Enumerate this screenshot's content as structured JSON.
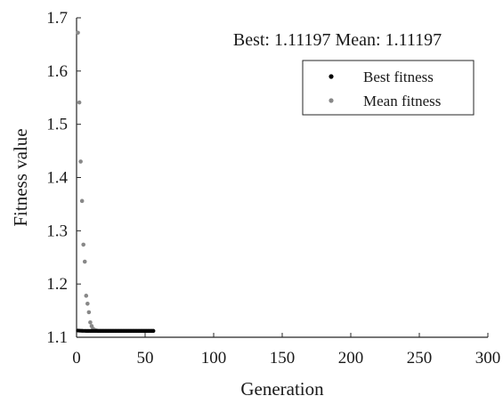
{
  "chart_data": {
    "type": "scatter",
    "title": "Best: 1.11197 Mean: 1.11197",
    "xlabel": "Generation",
    "ylabel": "Fitness value",
    "xlim": [
      0,
      300
    ],
    "ylim": [
      1.1,
      1.7
    ],
    "xticks": [
      "0",
      "50",
      "100",
      "150",
      "200",
      "250",
      "300"
    ],
    "yticks": [
      "1.1",
      "1.2",
      "1.3",
      "1.4",
      "1.5",
      "1.6",
      "1.7"
    ],
    "grid": false,
    "legend_position": "top-right",
    "series": [
      {
        "name": "Best fitness",
        "color": "#000000",
        "x": [
          1,
          2,
          3,
          4,
          5,
          6,
          7,
          8,
          9,
          10,
          11,
          12,
          13,
          14,
          15,
          16,
          17,
          18,
          19,
          20,
          21,
          22,
          23,
          24,
          25,
          26,
          27,
          28,
          29,
          30,
          31,
          32,
          33,
          34,
          35,
          36,
          37,
          38,
          39,
          40,
          41,
          42,
          43,
          44,
          45,
          46,
          47,
          48,
          49,
          50,
          51,
          52,
          53,
          54,
          55,
          56
        ],
        "y": [
          1.1126,
          1.1124,
          1.1122,
          1.1121,
          1.112,
          1.112,
          1.11197,
          1.11197,
          1.11197,
          1.11197,
          1.11197,
          1.11197,
          1.11197,
          1.11197,
          1.11197,
          1.11197,
          1.11197,
          1.11197,
          1.11197,
          1.11197,
          1.11197,
          1.11197,
          1.11197,
          1.11197,
          1.11197,
          1.11197,
          1.11197,
          1.11197,
          1.11197,
          1.11197,
          1.11197,
          1.11197,
          1.11197,
          1.11197,
          1.11197,
          1.11197,
          1.11197,
          1.11197,
          1.11197,
          1.11197,
          1.11197,
          1.11197,
          1.11197,
          1.11197,
          1.11197,
          1.11197,
          1.11197,
          1.11197,
          1.11197,
          1.11197,
          1.11197,
          1.11197,
          1.11197,
          1.11197,
          1.11197,
          1.11197
        ]
      },
      {
        "name": "Mean fitness",
        "color": "#888888",
        "x": [
          1,
          2,
          3,
          4,
          5,
          6,
          7,
          8,
          9,
          10,
          11,
          12,
          13,
          14,
          15,
          16,
          17,
          18,
          19,
          20,
          21,
          22,
          23,
          24,
          25,
          26,
          27,
          28,
          29,
          30,
          31,
          32,
          33,
          34,
          35,
          36,
          37,
          38,
          39,
          40,
          41,
          42,
          43,
          44,
          45,
          46,
          47,
          48,
          49,
          50,
          51,
          52,
          53,
          54,
          55,
          56
        ],
        "y": [
          1.672,
          1.541,
          1.43,
          1.356,
          1.274,
          1.242,
          1.178,
          1.163,
          1.147,
          1.128,
          1.121,
          1.116,
          1.114,
          1.113,
          1.1125,
          1.112,
          1.112,
          1.112,
          1.112,
          1.112,
          1.112,
          1.112,
          1.112,
          1.112,
          1.112,
          1.112,
          1.112,
          1.112,
          1.112,
          1.112,
          1.112,
          1.112,
          1.112,
          1.112,
          1.112,
          1.112,
          1.112,
          1.112,
          1.112,
          1.112,
          1.112,
          1.112,
          1.112,
          1.112,
          1.112,
          1.112,
          1.112,
          1.112,
          1.112,
          1.112,
          1.112,
          1.112,
          1.112,
          1.112,
          1.112,
          1.112
        ]
      }
    ]
  }
}
